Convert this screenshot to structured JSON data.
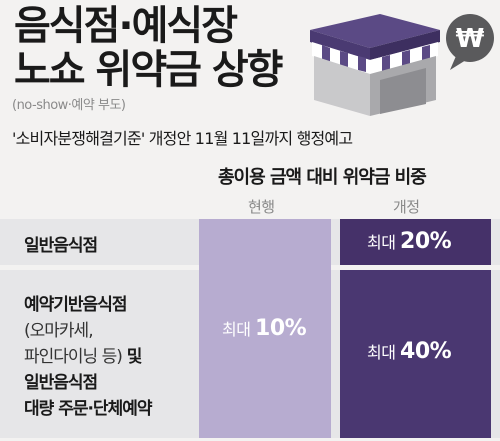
{
  "title": {
    "line1": "음식점·예식장",
    "line2": "노쇼 위약금 상향"
  },
  "subtitle": "(no-show·예약 부도)",
  "notice": "'소비자분쟁해결기준' 개정안 11월 11일까지 행정예고",
  "icons": {
    "store": "store-awning-icon",
    "speech": "won-speech-bubble-icon",
    "won_symbol": "₩"
  },
  "table": {
    "caption": "총이용 금액 대비 위약금 비중",
    "columns": {
      "current": "현행",
      "revised": "개정"
    },
    "rows": [
      {
        "label": "일반음식점",
        "revised_prefix": "최대",
        "revised_value": "20%"
      },
      {
        "label_line1": "예약기반음식점",
        "label_line2": "(오마카세,",
        "label_line3a": "파인다이닝 등)",
        "label_line3b": " 및",
        "label_line4": "일반음식점",
        "label_line5": "대량 주문·단체예약",
        "revised_prefix": "최대",
        "revised_value": "40%"
      }
    ],
    "current": {
      "prefix": "최대",
      "value": "10%"
    }
  },
  "colors": {
    "background": "#f3f2f1",
    "row_bg": "#e6e6e8",
    "current_col": "#b7acd0",
    "revised_col": "#453169",
    "store_roof": "#5b4a85",
    "store_wall": "#c9c9cb"
  }
}
